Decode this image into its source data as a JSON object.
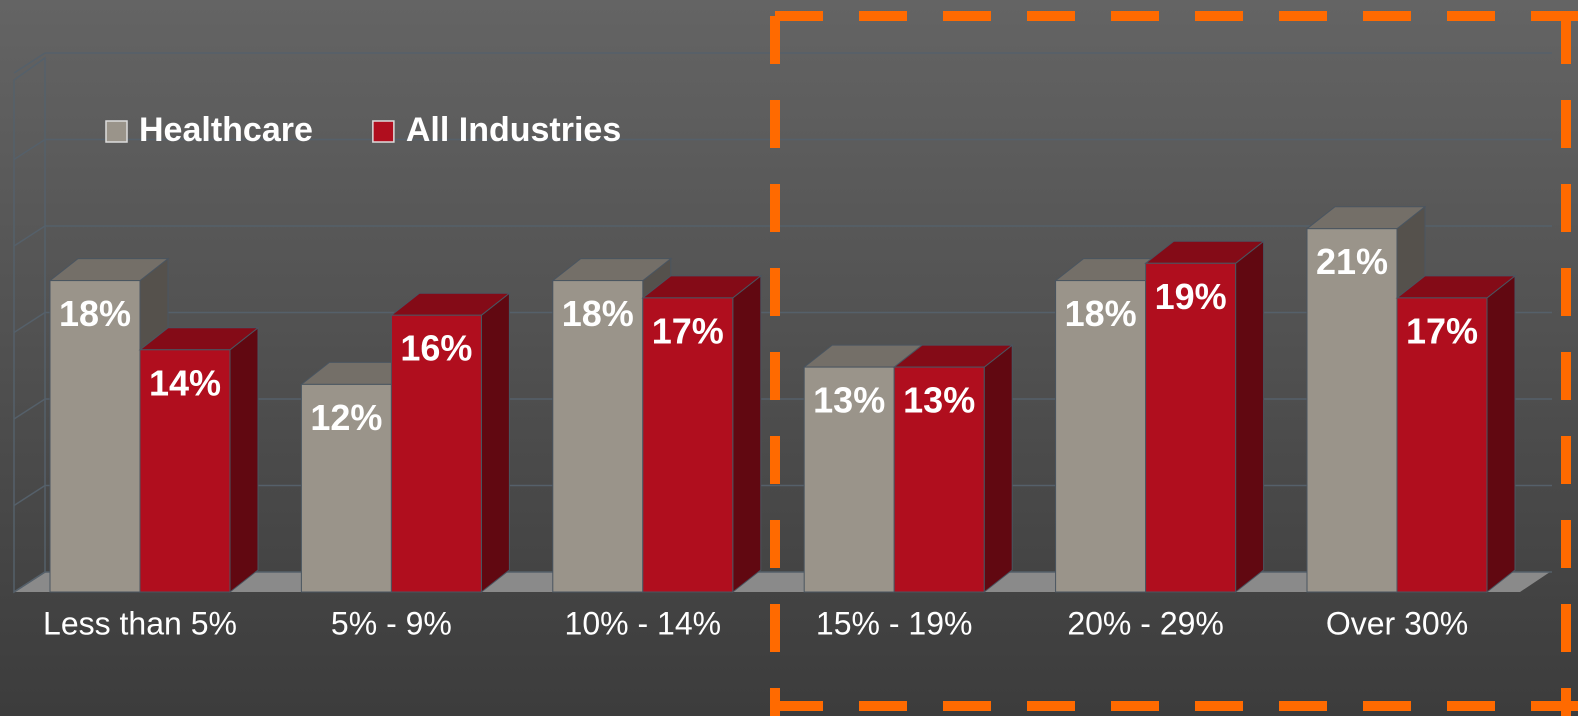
{
  "chart_data": {
    "type": "bar3d",
    "categories": [
      "Less than 5%",
      "5% - 9%",
      "10% - 14%",
      "15% - 19%",
      "20% - 29%",
      "Over 30%"
    ],
    "series": [
      {
        "name": "Healthcare",
        "color": "#9a948a",
        "values": [
          18,
          12,
          18,
          13,
          18,
          21
        ],
        "value_labels": [
          "18%",
          "12%",
          "18%",
          "13%",
          "18%",
          "21%"
        ]
      },
      {
        "name": "All Industries",
        "color": "#b00e1e",
        "values": [
          14,
          16,
          17,
          13,
          19,
          17
        ],
        "value_labels": [
          "14%",
          "16%",
          "17%",
          "13%",
          "19%",
          "17%"
        ]
      }
    ],
    "ylim": [
      0,
      30
    ],
    "yticks": [
      0,
      5,
      10,
      15,
      20,
      25,
      30
    ],
    "tick_labels": false,
    "grid": true,
    "legend": "top-left"
  }
}
